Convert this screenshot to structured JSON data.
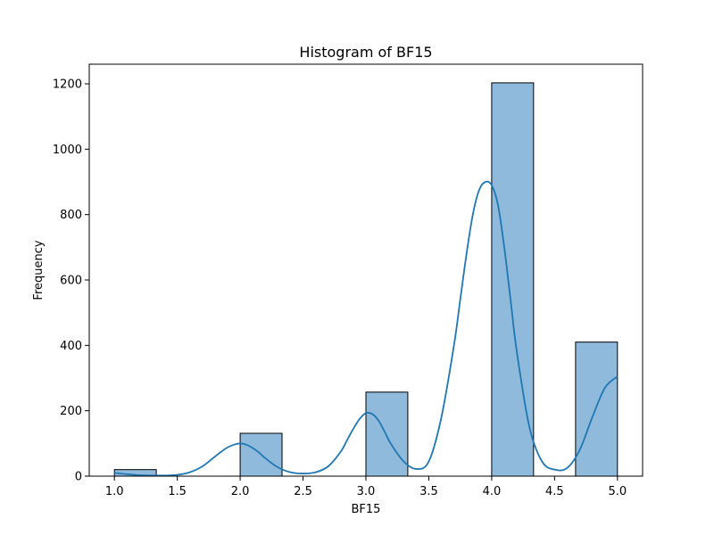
{
  "chart_data": {
    "type": "bar",
    "title": "Histogram of BF15",
    "xlabel": "BF15",
    "ylabel": "Frequency",
    "xlim": [
      0.8,
      5.2
    ],
    "ylim": [
      0,
      1260
    ],
    "xticks": [
      "1.0",
      "1.5",
      "2.0",
      "2.5",
      "3.0",
      "3.5",
      "4.0",
      "4.5",
      "5.0"
    ],
    "xtick_values": [
      1.0,
      1.5,
      2.0,
      2.5,
      3.0,
      3.5,
      4.0,
      4.5,
      5.0
    ],
    "yticks": [
      "0",
      "200",
      "400",
      "600",
      "800",
      "1000",
      "1200"
    ],
    "ytick_values": [
      0,
      200,
      400,
      600,
      800,
      1000,
      1200
    ],
    "grid": false,
    "bins": [
      {
        "x0": 1.0,
        "x1": 1.333,
        "count": 20
      },
      {
        "x0": 1.333,
        "x1": 1.667,
        "count": 0
      },
      {
        "x0": 1.667,
        "x1": 2.0,
        "count": 0
      },
      {
        "x0": 2.0,
        "x1": 2.333,
        "count": 131
      },
      {
        "x0": 2.333,
        "x1": 2.667,
        "count": 0
      },
      {
        "x0": 2.667,
        "x1": 3.0,
        "count": 0
      },
      {
        "x0": 3.0,
        "x1": 3.333,
        "count": 257
      },
      {
        "x0": 3.333,
        "x1": 3.667,
        "count": 0
      },
      {
        "x0": 3.667,
        "x1": 4.0,
        "count": 0
      },
      {
        "x0": 4.0,
        "x1": 4.333,
        "count": 1203
      },
      {
        "x0": 4.333,
        "x1": 4.667,
        "count": 0
      },
      {
        "x0": 4.667,
        "x1": 5.0,
        "count": 410
      }
    ],
    "kde": {
      "x": [
        1.0,
        1.1,
        1.2,
        1.3,
        1.4,
        1.5,
        1.6,
        1.7,
        1.8,
        1.85,
        1.9,
        1.95,
        2.0,
        2.05,
        2.1,
        2.15,
        2.2,
        2.3,
        2.4,
        2.5,
        2.6,
        2.7,
        2.8,
        2.85,
        2.9,
        2.95,
        3.0,
        3.05,
        3.1,
        3.15,
        3.2,
        3.3,
        3.4,
        3.5,
        3.6,
        3.7,
        3.75,
        3.8,
        3.85,
        3.9,
        3.95,
        4.0,
        4.05,
        4.1,
        4.15,
        4.2,
        4.3,
        4.4,
        4.5,
        4.6,
        4.7,
        4.8,
        4.9,
        5.0
      ],
      "y": [
        10,
        6,
        3,
        2,
        2,
        4,
        12,
        30,
        60,
        75,
        88,
        96,
        100,
        96,
        86,
        72,
        55,
        27,
        12,
        8,
        12,
        30,
        75,
        110,
        145,
        175,
        193,
        190,
        170,
        135,
        98,
        45,
        22,
        45,
        180,
        400,
        540,
        680,
        800,
        875,
        900,
        890,
        830,
        700,
        540,
        380,
        150,
        45,
        20,
        25,
        80,
        180,
        270,
        305
      ]
    },
    "bar_color": "#8fbadb",
    "bar_edge_color": "#000000",
    "kde_color": "#1f77b4"
  }
}
